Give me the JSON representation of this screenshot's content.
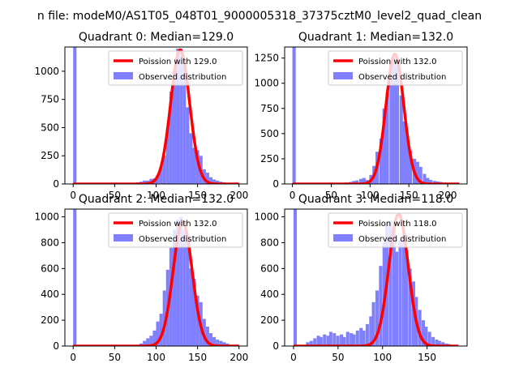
{
  "figure": {
    "suptitle": "n file: modeM0/AS1T05_048T01_9000005318_37375cztM0_level2_quad_clean"
  },
  "colors": {
    "histogram": "#8080ff",
    "poisson": "#ff0000",
    "background": "#ffffff",
    "axis": "#000000"
  },
  "chart_data": [
    {
      "type": "bar",
      "title": "Quadrant 0: Median=129.0",
      "xlabel": "",
      "ylabel": "",
      "xlim": [
        -10,
        210
      ],
      "ylim": [
        0,
        1215
      ],
      "xticks": [
        0,
        50,
        100,
        150,
        200
      ],
      "yticks": [
        0,
        250,
        500,
        750,
        1000
      ],
      "legend_position": "top-right",
      "series": [
        {
          "name": "Observed distribution",
          "kind": "histogram",
          "bin_width": 4,
          "bins_left": [
            0,
            68,
            72,
            76,
            80,
            84,
            88,
            92,
            96,
            100,
            104,
            108,
            112,
            116,
            120,
            124,
            128,
            132,
            136,
            140,
            144,
            148,
            152,
            156,
            160,
            164,
            168,
            172,
            176,
            180,
            184,
            188,
            192,
            196
          ],
          "values": [
            1215,
            5,
            10,
            15,
            20,
            30,
            30,
            45,
            50,
            80,
            150,
            250,
            500,
            820,
            1010,
            1200,
            1200,
            1050,
            680,
            450,
            320,
            300,
            250,
            130,
            100,
            60,
            40,
            30,
            20,
            15,
            10,
            8,
            5,
            3
          ]
        },
        {
          "name": "Poission with 129.0",
          "kind": "line",
          "lambda": 129.0,
          "x_range": [
            0,
            200
          ],
          "peak": 1190,
          "sigma": 11.4
        }
      ]
    },
    {
      "type": "bar",
      "title": "Quadrant 1: Median=132.0",
      "xlabel": "",
      "ylabel": "",
      "xlim": [
        -10,
        225
      ],
      "ylim": [
        0,
        1360
      ],
      "xticks": [
        0,
        50,
        100,
        150,
        200
      ],
      "yticks": [
        0,
        250,
        500,
        750,
        1000,
        1250
      ],
      "legend_position": "top-right",
      "series": [
        {
          "name": "Observed distribution",
          "kind": "histogram",
          "bin_width": 4.3,
          "bins_left": [
            0,
            60,
            64,
            68,
            73,
            77,
            81,
            86,
            90,
            94,
            99,
            103,
            107,
            112,
            116,
            120,
            125,
            129,
            133,
            138,
            142,
            146,
            150,
            155,
            159,
            163,
            168,
            172,
            176,
            181,
            185,
            189,
            194,
            198,
            202,
            206,
            211
          ],
          "values": [
            1360,
            5,
            10,
            15,
            20,
            30,
            35,
            50,
            60,
            40,
            90,
            180,
            320,
            450,
            750,
            900,
            1200,
            1250,
            1180,
            880,
            620,
            480,
            330,
            250,
            220,
            170,
            100,
            60,
            40,
            30,
            25,
            20,
            15,
            10,
            8,
            5,
            3
          ]
        },
        {
          "name": "Poission with 132.0",
          "kind": "line",
          "lambda": 132.0,
          "x_range": [
            0,
            215
          ],
          "peak": 1290,
          "sigma": 11.5
        }
      ]
    },
    {
      "type": "bar",
      "title": "Quadrant 2: Median=132.0",
      "xlabel": "",
      "ylabel": "",
      "xlim": [
        -10,
        210
      ],
      "ylim": [
        0,
        1060
      ],
      "xticks": [
        0,
        50,
        100,
        150,
        200
      ],
      "yticks": [
        0,
        200,
        400,
        600,
        800,
        1000
      ],
      "legend_position": "top-right",
      "series": [
        {
          "name": "Observed distribution",
          "kind": "histogram",
          "bin_width": 4,
          "bins_left": [
            0,
            80,
            84,
            88,
            92,
            96,
            100,
            104,
            108,
            112,
            116,
            120,
            124,
            128,
            132,
            136,
            140,
            144,
            148,
            152,
            156,
            160,
            164,
            168,
            172,
            176,
            180,
            184,
            188,
            192,
            196
          ],
          "values": [
            1060,
            20,
            40,
            60,
            80,
            120,
            190,
            250,
            430,
            590,
            760,
            900,
            980,
            1000,
            900,
            810,
            600,
            520,
            390,
            340,
            210,
            150,
            100,
            70,
            50,
            40,
            30,
            20,
            10,
            8,
            5
          ]
        },
        {
          "name": "Poission with 132.0",
          "kind": "line",
          "lambda": 132.0,
          "x_range": [
            0,
            200
          ],
          "peak": 960,
          "sigma": 11.5
        }
      ]
    },
    {
      "type": "bar",
      "title": "Quadrant 3: Median=118.0",
      "xlabel": "",
      "ylabel": "",
      "xlim": [
        -10,
        195
      ],
      "ylim": [
        0,
        1060
      ],
      "xticks": [
        0,
        50,
        100,
        150
      ],
      "yticks": [
        0,
        200,
        400,
        600,
        800,
        1000
      ],
      "legend_position": "top-right",
      "series": [
        {
          "name": "Observed distribution",
          "kind": "histogram",
          "bin_width": 3.7,
          "bins_left": [
            0,
            10,
            14,
            18,
            22,
            26,
            29,
            33,
            37,
            40,
            44,
            48,
            52,
            55,
            59,
            63,
            66,
            70,
            74,
            77,
            81,
            85,
            88,
            92,
            96,
            100,
            103,
            107,
            111,
            114,
            118,
            122,
            125,
            129,
            133,
            136,
            140,
            144,
            147,
            151,
            155,
            159,
            162,
            166,
            170,
            173,
            177,
            181
          ],
          "values": [
            1060,
            10,
            30,
            40,
            60,
            80,
            70,
            90,
            80,
            110,
            100,
            80,
            90,
            70,
            110,
            100,
            90,
            120,
            140,
            120,
            170,
            230,
            340,
            430,
            620,
            800,
            940,
            970,
            910,
            730,
            820,
            860,
            740,
            600,
            500,
            380,
            280,
            200,
            150,
            110,
            70,
            50,
            40,
            30,
            20,
            15,
            10,
            5
          ]
        },
        {
          "name": "Poission with 118.0",
          "kind": "line",
          "lambda": 118.0,
          "x_range": [
            0,
            185
          ],
          "peak": 1020,
          "sigma": 10.9
        }
      ]
    }
  ]
}
